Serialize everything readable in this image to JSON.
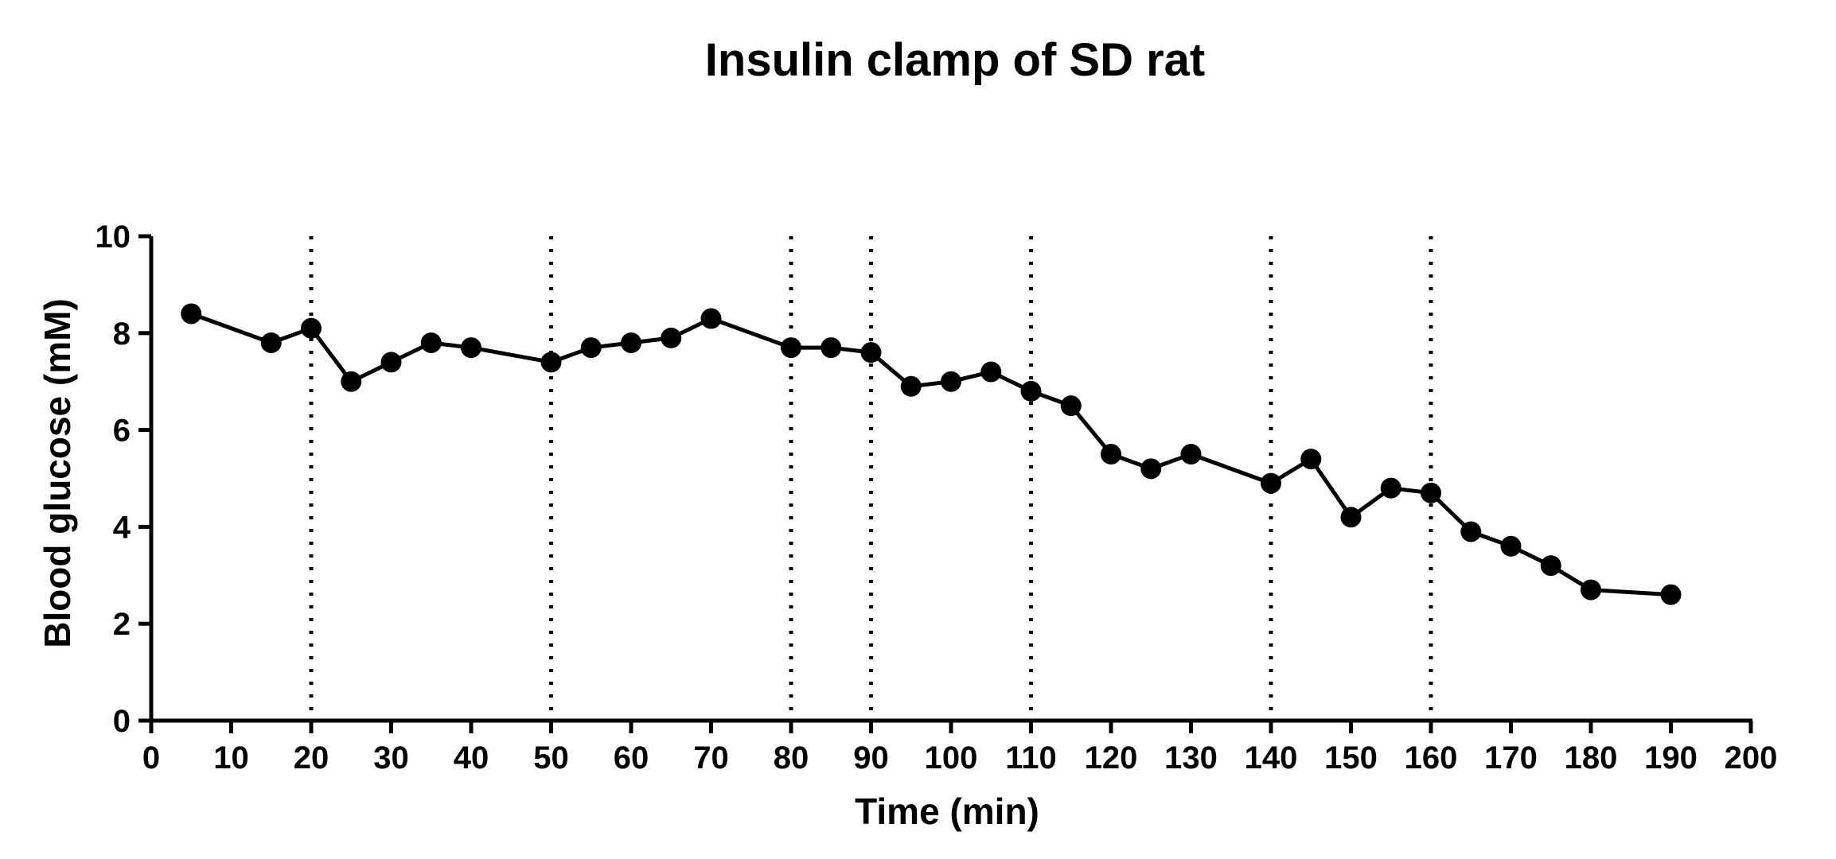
{
  "chart_data": {
    "type": "line",
    "title": "Insulin clamp of SD rat",
    "xlabel": "Time (min)",
    "ylabel": "Blood glucose (mM)",
    "xlim": [
      0,
      200
    ],
    "ylim": [
      0,
      10
    ],
    "x_ticks": [
      0,
      10,
      20,
      30,
      40,
      50,
      60,
      70,
      80,
      90,
      100,
      110,
      120,
      130,
      140,
      150,
      160,
      170,
      180,
      190,
      200
    ],
    "y_ticks": [
      0,
      2,
      4,
      6,
      8,
      10
    ],
    "grid": false,
    "legend": "none",
    "reference_lines_x": [
      20,
      50,
      80,
      90,
      110,
      140,
      160
    ],
    "series": [
      {
        "x": [
          5,
          15,
          20,
          25,
          30,
          35,
          40,
          50,
          55,
          60,
          65,
          70,
          80,
          85,
          90,
          95,
          100,
          105,
          110,
          115,
          120,
          125,
          130,
          140,
          145,
          150,
          155,
          160,
          165,
          170,
          175,
          180,
          190
        ],
        "y": [
          8.4,
          7.8,
          8.1,
          7.0,
          7.4,
          7.8,
          7.7,
          7.4,
          7.7,
          7.8,
          7.9,
          8.3,
          7.7,
          7.7,
          7.6,
          6.9,
          7.0,
          7.2,
          6.8,
          6.5,
          5.5,
          5.2,
          5.5,
          4.9,
          5.4,
          4.2,
          4.8,
          4.7,
          3.9,
          3.6,
          3.2,
          2.7,
          2.6
        ],
        "color": "#000000"
      }
    ]
  }
}
